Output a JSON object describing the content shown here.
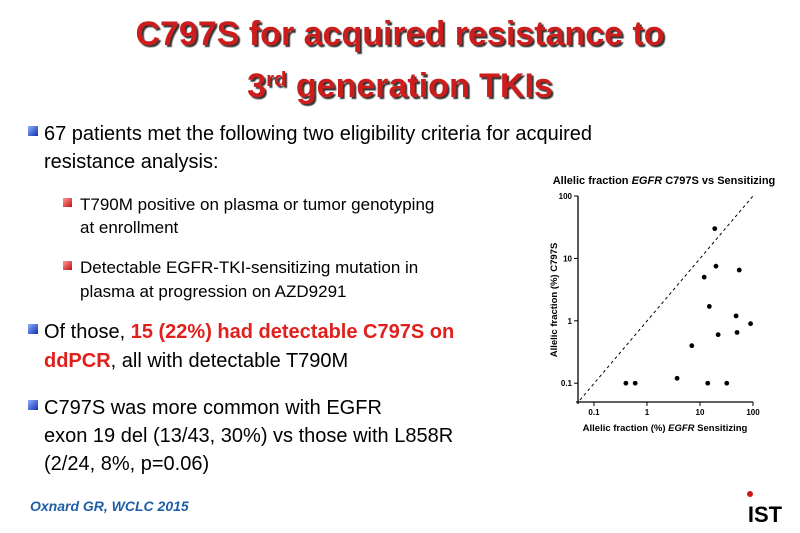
{
  "header": {
    "title_line1": "C797S for acquired resistance to",
    "title_line2": [
      {
        "text": "3"
      },
      {
        "text": "rd",
        "superscript": true
      },
      {
        "text": " generation TKIs"
      }
    ]
  },
  "bullets": [
    {
      "level": 1,
      "lines": [
        [
          {
            "text": "67 patients met the following two eligibility criteria for acquired"
          }
        ],
        [
          {
            "text": "resistance analysis:"
          }
        ]
      ]
    },
    {
      "level": 2,
      "lines": [
        [
          {
            "text": "T790M positive on plasma or tumor genotyping"
          }
        ],
        [
          {
            "text": "at enrollment"
          }
        ]
      ]
    },
    {
      "level": 2,
      "lines": [
        [
          {
            "text": "Detectable EGFR-TKI-sensitizing mutation in"
          }
        ],
        [
          {
            "text": "plasma at progression on AZD9291"
          }
        ]
      ]
    },
    {
      "level": 1,
      "lines": [
        [
          {
            "text": "Of those, "
          },
          {
            "text": "15 (22%) had detectable C797S on",
            "color": "#e0201c",
            "bold": true
          }
        ],
        [
          {
            "text": "ddPCR",
            "color": "#e0201c",
            "bold": true
          },
          {
            "text": ", all with detectable T790M"
          }
        ]
      ]
    },
    {
      "level": 1,
      "lines": [
        [
          {
            "text": "C797S was more common with EGFR"
          }
        ],
        [
          {
            "text": "exon 19 del (13/43, 30%) vs those with L858R"
          }
        ],
        [
          {
            "text": "(2/24, 8%, p=0.06)"
          }
        ]
      ]
    }
  ],
  "footer": {
    "citation": "Oxnard GR, WCLC 2015",
    "logo": "IST"
  },
  "chart_data": {
    "type": "scatter",
    "title": [
      {
        "text": "Allelic fraction "
      },
      {
        "text": "EGFR",
        "italic": true
      },
      {
        "text": " C797S vs Sensitizing"
      }
    ],
    "xlabel": [
      {
        "text": "Allelic fraction (%) "
      },
      {
        "text": "EGFR",
        "italic": true
      },
      {
        "text": " Sensitizing"
      }
    ],
    "ylabel": "Allelic fraction (%) C797S",
    "x": [
      19,
      20,
      12,
      55,
      15,
      48,
      90,
      22,
      50,
      7,
      3.7,
      0.4,
      0.6,
      14,
      32
    ],
    "values": [
      30,
      7.5,
      5,
      6.5,
      1.7,
      1.2,
      0.9,
      0.6,
      0.65,
      0.4,
      0.12,
      0.1,
      0.1,
      0.1,
      0.1
    ],
    "color": "#000000",
    "xscale": "log",
    "yscale": "log",
    "xlim": [
      0.05,
      100
    ],
    "ylim": [
      0.05,
      100
    ],
    "xticks": [
      0.1,
      1,
      10,
      100
    ],
    "yticks": [
      0.1,
      1,
      10,
      100
    ]
  }
}
